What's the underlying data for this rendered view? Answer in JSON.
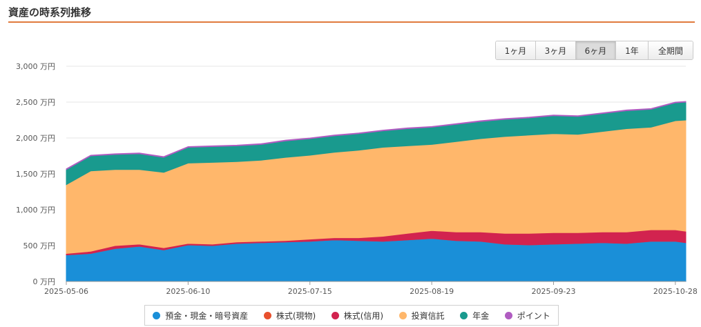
{
  "header": {
    "title": "資産の時系列推移"
  },
  "range_buttons": [
    {
      "label": "1ヶ月",
      "active": false
    },
    {
      "label": "3ヶ月",
      "active": false
    },
    {
      "label": "6ヶ月",
      "active": true
    },
    {
      "label": "1年",
      "active": false
    },
    {
      "label": "全期間",
      "active": false
    }
  ],
  "colors": {
    "yokin": "#1a8fd8",
    "genbutsu": "#e8502d",
    "shinyo": "#d2234f",
    "toushin": "#ffb76b",
    "nenkin": "#199a8e",
    "point": "#b05cc1",
    "grid": "#e6e6e6",
    "axis": "#999999"
  },
  "chart_data": {
    "type": "area",
    "stacked": true,
    "y_unit": "万円",
    "ylim": [
      0,
      3000
    ],
    "y_ticks": [
      {
        "value": 0,
        "label": "0 万円"
      },
      {
        "value": 500,
        "label": "500 万円"
      },
      {
        "value": 1000,
        "label": "1,000 万円"
      },
      {
        "value": 1500,
        "label": "1,500 万円"
      },
      {
        "value": 2000,
        "label": "2,000 万円"
      },
      {
        "value": 2500,
        "label": "2,500 万円"
      },
      {
        "value": 3000,
        "label": "3,000 万円"
      }
    ],
    "x_ticks": [
      "2025-05-06",
      "2025-06-10",
      "2025-07-15",
      "2025-08-19",
      "2025-09-23",
      "2025-10-28"
    ],
    "x_range": [
      "2025-05-06",
      "2025-10-31"
    ],
    "grid": true,
    "legend_position": "bottom",
    "x": [
      "2025-05-06",
      "2025-05-13",
      "2025-05-20",
      "2025-05-27",
      "2025-06-03",
      "2025-06-10",
      "2025-06-17",
      "2025-06-24",
      "2025-07-01",
      "2025-07-08",
      "2025-07-15",
      "2025-07-22",
      "2025-07-29",
      "2025-08-05",
      "2025-08-12",
      "2025-08-19",
      "2025-08-26",
      "2025-09-02",
      "2025-09-09",
      "2025-09-16",
      "2025-09-23",
      "2025-09-30",
      "2025-10-07",
      "2025-10-14",
      "2025-10-21",
      "2025-10-28",
      "2025-10-31"
    ],
    "series": [
      {
        "name": "預金・現金・暗号資産",
        "color_key": "yokin",
        "values": [
          370,
          390,
          460,
          490,
          440,
          510,
          500,
          530,
          540,
          550,
          560,
          580,
          570,
          560,
          580,
          600,
          570,
          560,
          520,
          510,
          520,
          530,
          540,
          530,
          560,
          560,
          540
        ]
      },
      {
        "name": "株式(現物)",
        "color_key": "genbutsu",
        "values": [
          0,
          0,
          0,
          0,
          0,
          0,
          0,
          0,
          0,
          0,
          0,
          0,
          0,
          0,
          0,
          0,
          0,
          0,
          0,
          0,
          0,
          0,
          0,
          0,
          0,
          0,
          0
        ]
      },
      {
        "name": "株式(信用)",
        "color_key": "shinyo",
        "values": [
          20,
          30,
          40,
          30,
          30,
          20,
          20,
          20,
          20,
          20,
          30,
          30,
          40,
          70,
          90,
          110,
          120,
          130,
          150,
          160,
          160,
          150,
          150,
          160,
          160,
          160,
          160
        ]
      },
      {
        "name": "投資信託",
        "color_key": "toushin",
        "values": [
          960,
          1120,
          1060,
          1040,
          1050,
          1120,
          1140,
          1120,
          1130,
          1160,
          1170,
          1190,
          1220,
          1240,
          1220,
          1200,
          1260,
          1300,
          1350,
          1370,
          1380,
          1370,
          1400,
          1440,
          1430,
          1520,
          1550
        ]
      },
      {
        "name": "年金",
        "color_key": "nenkin",
        "values": [
          210,
          210,
          210,
          220,
          210,
          220,
          220,
          220,
          220,
          230,
          230,
          230,
          230,
          230,
          240,
          240,
          240,
          240,
          240,
          240,
          250,
          250,
          250,
          250,
          250,
          250,
          250
        ]
      },
      {
        "name": "ポイント",
        "color_key": "point",
        "values": [
          10,
          10,
          10,
          10,
          10,
          10,
          10,
          10,
          10,
          10,
          10,
          10,
          10,
          10,
          10,
          10,
          10,
          10,
          10,
          10,
          10,
          10,
          10,
          10,
          10,
          10,
          10
        ]
      }
    ]
  }
}
